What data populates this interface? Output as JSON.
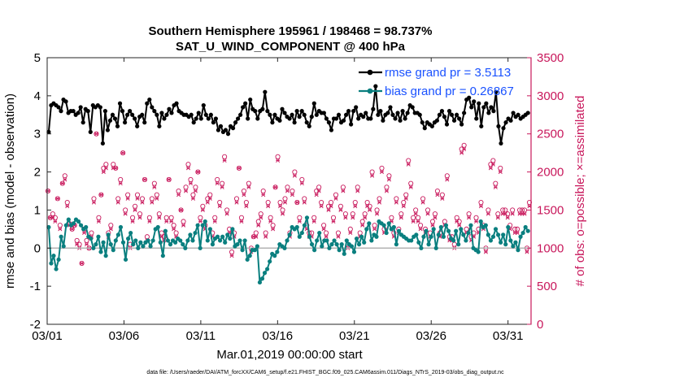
{
  "chart_data": {
    "type": "line",
    "title": "Southern Hemisphere 195961 / 198468 = 98.737%",
    "subtitle": "SAT_U_WIND_COMPONENT @ 400 hPa",
    "xlabel": "Mar.01,2019 00:00:00 start",
    "ylabel": "rmse and bias (model - observation)",
    "ylabel_right": "# of obs: o=possible; ×=assimilated",
    "xlim": [
      0,
      31.5
    ],
    "ylim": [
      -2,
      5
    ],
    "ylim_right": [
      0,
      3500
    ],
    "x_ticks": [
      0,
      5,
      10,
      15,
      20,
      25,
      30
    ],
    "x_tick_labels": [
      "03/01",
      "03/06",
      "03/11",
      "03/16",
      "03/21",
      "03/26",
      "03/31"
    ],
    "y_ticks": [
      -2,
      -1,
      0,
      1,
      2,
      3,
      4,
      5
    ],
    "y_tick_labels": [
      "-2",
      "-1",
      "0",
      "1",
      "2",
      "3",
      "4",
      "5"
    ],
    "y_right_ticks": [
      0,
      500,
      1000,
      1500,
      2000,
      2500,
      3000,
      3500
    ],
    "y_right_tick_labels": [
      "0",
      "500",
      "1000",
      "1500",
      "2000",
      "2500",
      "3000",
      "3500"
    ],
    "zero_line": 0,
    "legend": [
      {
        "name": "rmse grand pr = 3.5113",
        "color": "#000000"
      },
      {
        "name": "bias grand pr = 0.26867",
        "color": "#0a7f7f"
      }
    ],
    "footnote": "data file: /Users/raeder/DAI/ATM_forcXX/CAM6_setup/f.e21.FHIST_BGC.f09_025.CAM6assim.011/Diags_NTrS_2019-03/obs_diag_output.nc",
    "colors": {
      "rmse": "#000000",
      "bias": "#0a7f7f",
      "obs": "#c8175b",
      "zero": "#b3b3b3"
    },
    "series": [
      {
        "name": "rmse",
        "values": [
          3.05,
          3.75,
          3.8,
          3.75,
          3.7,
          3.6,
          3.9,
          3.85,
          3.55,
          3.6,
          3.6,
          3.5,
          3.55,
          3.7,
          3.3,
          3.65,
          3.6,
          3.05,
          3.75,
          3.7,
          3.75,
          3.7,
          2.75,
          3.6,
          3.1,
          3.35,
          3.5,
          3.4,
          3.2,
          3.8,
          3.6,
          3.3,
          3.5,
          3.6,
          3.5,
          3.4,
          3.2,
          3.45,
          3.5,
          3.3,
          3.8,
          3.9,
          3.7,
          3.6,
          3.5,
          3.2,
          3.55,
          3.4,
          3.5,
          3.65,
          3.55,
          3.75,
          3.8,
          3.6,
          3.55,
          3.5,
          3.5,
          3.45,
          3.5,
          3.3,
          3.4,
          3.55,
          3.4,
          3.75,
          3.5,
          3.4,
          3.5,
          3.3,
          3.4,
          3.1,
          3.2,
          3.05,
          3.1,
          3.0,
          3.2,
          3.15,
          3.3,
          3.4,
          3.5,
          3.7,
          3.8,
          3.4,
          3.9,
          3.65,
          3.6,
          3.4,
          3.6,
          3.65,
          4.1,
          3.6,
          3.5,
          3.3,
          3.5,
          3.4,
          3.35,
          3.65,
          3.55,
          3.45,
          3.4,
          3.5,
          3.3,
          3.6,
          3.45,
          3.6,
          3.5,
          3.3,
          3.2,
          3.45,
          3.8,
          3.5,
          3.6,
          3.55,
          3.55,
          3.4,
          3.3,
          3.1,
          3.4,
          3.4,
          3.5,
          3.3,
          3.35,
          3.5,
          3.6,
          3.25,
          3.6,
          3.7,
          3.4,
          3.5,
          3.45,
          3.55,
          3.4,
          3.4,
          3.65,
          4.25,
          3.5,
          3.6,
          3.35,
          3.5,
          3.55,
          3.7,
          3.5,
          3.4,
          3.55,
          3.35,
          3.6,
          3.4,
          3.55,
          3.75,
          3.7,
          3.55,
          3.55,
          3.5,
          3.3,
          3.15,
          3.3,
          3.25,
          3.2,
          3.3,
          3.35,
          3.5,
          3.6,
          3.45,
          3.25,
          3.6,
          3.5,
          3.35,
          3.5,
          3.4,
          3.25,
          3.55,
          3.9,
          3.95,
          3.7,
          3.85,
          3.4,
          3.8,
          3.2,
          3.7,
          3.8,
          3.55,
          3.7,
          3.6,
          4.1,
          3.2,
          2.75,
          3.15,
          3.3,
          3.4,
          3.35,
          3.55,
          3.45,
          3.5,
          3.4,
          3.45,
          3.5,
          3.55
        ]
      },
      {
        "name": "bias",
        "values": [
          0.55,
          -0.4,
          -0.2,
          -0.55,
          -0.3,
          0.3,
          0.05,
          0.6,
          0.75,
          0.6,
          0.65,
          0.75,
          0.7,
          0.6,
          0.5,
          0.55,
          0.3,
          0.25,
          0.0,
          0.1,
          0.3,
          -0.1,
          0.15,
          -0.2,
          0.35,
          0.1,
          -0.05,
          0.2,
          0.35,
          0.55,
          0.15,
          -0.3,
          0.25,
          0.4,
          0.1,
          0.2,
          0.0,
          0.15,
          0.05,
          0.15,
          0.2,
          0.05,
          0.2,
          0.5,
          0.55,
          0.15,
          -0.2,
          0.45,
          0.2,
          0.1,
          0.2,
          0.15,
          0.25,
          0.2,
          0.1,
          0.0,
          0.2,
          0.35,
          0.2,
          0.4,
          0.6,
          0.0,
          0.6,
          0.7,
          0.2,
          0.5,
          0.1,
          0.25,
          0.3,
          0.2,
          0.3,
          0.15,
          0.35,
          0.25,
          0.5,
          0.05,
          0.1,
          0.2,
          -0.05,
          0.2,
          -0.3,
          -0.2,
          -0.05,
          -0.05,
          0.05,
          -0.9,
          -0.8,
          -0.65,
          -0.55,
          -0.35,
          -0.15,
          -0.2,
          -0.1,
          0.1,
          0.05,
          0.0,
          0.2,
          0.35,
          0.55,
          0.5,
          0.55,
          0.3,
          0.4,
          0.6,
          0.8,
          0.3,
          0.1,
          -0.05,
          0.2,
          0.4,
          0.05,
          0.2,
          0.2,
          0.0,
          0.1,
          0.2,
          0.1,
          -0.05,
          0.1,
          -0.15,
          0.2,
          0.1,
          0.05,
          -0.1,
          0.25,
          0.1,
          0.3,
          0.15,
          0.5,
          0.65,
          0.2,
          0.35,
          0.3,
          0.7,
          0.65,
          0.6,
          0.4,
          0.65,
          0.5,
          0.55,
          0.1,
          0.45,
          0.35,
          0.3,
          0.25,
          0.2,
          0.2,
          0.3,
          0.35,
          0.15,
          0.0,
          0.3,
          0.45,
          0.1,
          0.3,
          0.5,
          0.0,
          0.35,
          0.55,
          0.3,
          0.6,
          0.45,
          0.25,
          0.2,
          0.45,
          0.1,
          0.5,
          0.35,
          0.2,
          0.4,
          0.6,
          0.0,
          -0.05,
          -0.1,
          0.7,
          0.55,
          0.6,
          0.35,
          0.2,
          0.3,
          0.5,
          0.35,
          0.15,
          0.35,
          0.1,
          0.55,
          0.2,
          0.05,
          0.15,
          -0.05,
          0.3,
          0.4,
          0.55,
          0.45
        ]
      },
      {
        "name": "obs possible",
        "values": [
          1750,
          1400,
          1450,
          1400,
          1650,
          1300,
          1850,
          1950,
          1600,
          1320,
          1250,
          1300,
          1100,
          1050,
          800,
          1250,
          1100,
          1000,
          1200,
          1650,
          2500,
          1400,
          1700,
          2050,
          2100,
          1200,
          1300,
          2100,
          2050,
          1650,
          1900,
          2250,
          1500,
          1700,
          1050,
          1400,
          1550,
          1700,
          1450,
          1650,
          1900,
          1150,
          1400,
          1650,
          1850,
          1700,
          1450,
          1200,
          1150,
          1400,
          1900,
          1400,
          1300,
          1200,
          1750,
          1500,
          1350,
          1800,
          2100,
          1900,
          1700,
          1800,
          2000,
          1400,
          1550,
          1300,
          1650,
          1700,
          1200,
          1400,
          1900,
          1600,
          1850,
          2200,
          1500,
          1250,
          950,
          1200,
          1650,
          2050,
          1400,
          1750,
          1600,
          1850,
          1000,
          1150,
          1200,
          1350,
          1450,
          1750,
          1200,
          1600,
          1400,
          1300,
          1800,
          2200,
          1600,
          1500,
          1650,
          1800,
          1200,
          1750,
          2000,
          1600,
          1400,
          1900,
          1650,
          1300,
          1200,
          1200,
          1400,
          1750,
          1800,
          1600,
          1300,
          1200,
          1550,
          1600,
          1400,
          1700,
          1200,
          1550,
          1800,
          1450,
          1050,
          1250,
          1450,
          1600,
          1800,
          1200,
          1350,
          1450,
          1600,
          1550,
          2000,
          1300,
          1500,
          1650,
          2050,
          1250,
          1800,
          1950,
          1400,
          1200,
          1650,
          1250,
          1450,
          1600,
          1700,
          2150,
          1850,
          1400,
          1500,
          1400,
          1300,
          1650,
          1250,
          1500,
          1200,
          1350,
          1450,
          1750,
          1200,
          1700,
          1350,
          1950,
          1150,
          1150,
          1050,
          1400,
          1350,
          2300,
          2350,
          1250,
          1450,
          1150,
          1200,
          1400,
          1250,
          1600,
          1300,
          1000,
          1500,
          2100,
          2150,
          1850,
          1450,
          2050,
          1500,
          1500,
          1450,
          1300,
          1500,
          1250,
          1250,
          1500,
          1500,
          1500,
          1000,
          1600
        ]
      },
      {
        "name": "obs assimilated",
        "values": [
          1750,
          1400,
          1400,
          1350,
          1650,
          1250,
          1850,
          1900,
          1550,
          1300,
          1250,
          1300,
          1050,
          1000,
          800,
          1200,
          1050,
          1000,
          1150,
          1600,
          2500,
          1350,
          1700,
          2000,
          2050,
          1150,
          1250,
          2050,
          2050,
          1600,
          1850,
          2250,
          1450,
          1650,
          1000,
          1350,
          1500,
          1650,
          1400,
          1600,
          1900,
          1100,
          1350,
          1600,
          1800,
          1650,
          1400,
          1150,
          1100,
          1350,
          1900,
          1350,
          1250,
          1150,
          1700,
          1500,
          1300,
          1750,
          2050,
          1850,
          1650,
          1750,
          2000,
          1350,
          1500,
          1250,
          1600,
          1650,
          1150,
          1350,
          1850,
          1550,
          1800,
          2150,
          1450,
          1200,
          900,
          1150,
          1600,
          2050,
          1350,
          1700,
          1550,
          1800,
          950,
          1150,
          1150,
          1300,
          1400,
          1700,
          1150,
          1550,
          1350,
          1250,
          1800,
          2150,
          1550,
          1450,
          1600,
          1750,
          1150,
          1700,
          1950,
          1600,
          1350,
          1850,
          1600,
          1250,
          1150,
          1150,
          1350,
          1700,
          1750,
          1550,
          1250,
          1150,
          1500,
          1550,
          1350,
          1650,
          1150,
          1500,
          1750,
          1400,
          1000,
          1200,
          1400,
          1550,
          1750,
          1150,
          1300,
          1400,
          1550,
          1500,
          1950,
          1250,
          1450,
          1600,
          2000,
          1200,
          1750,
          1900,
          1350,
          1150,
          1600,
          1200,
          1400,
          1550,
          1650,
          2100,
          1800,
          1350,
          1450,
          1350,
          1250,
          1600,
          1200,
          1450,
          1150,
          1300,
          1400,
          1700,
          1150,
          1650,
          1300,
          1900,
          1100,
          1100,
          1000,
          1350,
          1300,
          2250,
          2300,
          1200,
          1400,
          1100,
          1150,
          1350,
          1200,
          1550,
          1250,
          950,
          1450,
          2050,
          2100,
          1800,
          1400,
          2000,
          1450,
          1450,
          1400,
          1250,
          1450,
          1200,
          1200,
          1450,
          1450,
          1450,
          950,
          1550
        ]
      }
    ]
  }
}
